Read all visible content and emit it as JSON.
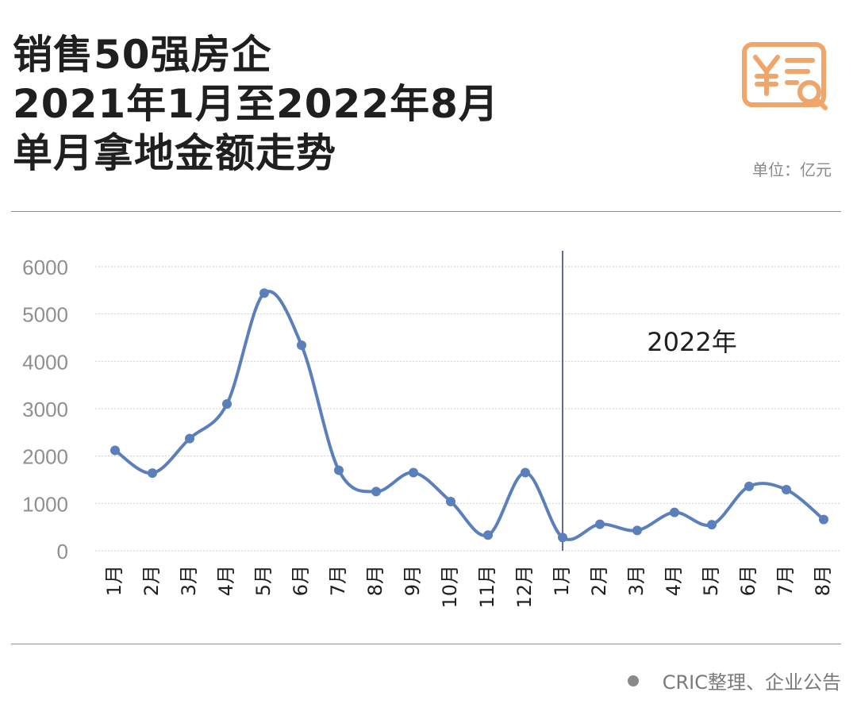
{
  "header": {
    "title_lines": [
      "销售50强房企",
      "2021年1月至2022年8月",
      "单月拿地金额走势"
    ],
    "unit": "单位：亿元",
    "icon": "yuan-receipt-search-icon"
  },
  "footer": {
    "source": "CRIC整理、企业公告"
  },
  "colors": {
    "line": "#5a7fbb",
    "icon": "#f0a56b",
    "grid": "#d0d0d0",
    "divider": "#2e3b6e"
  },
  "chart_data": {
    "type": "line",
    "title": "销售50强房企 2021年1月至2022年8月 单月拿地金额走势",
    "ylabel": "单位：亿元",
    "xlabel": "",
    "ylim": [
      0,
      6000
    ],
    "yticks": [
      "0",
      "1000",
      "2000",
      "3000",
      "4000",
      "5000",
      "6000"
    ],
    "grid": true,
    "categories": [
      "1月",
      "2月",
      "3月",
      "4月",
      "5月",
      "6月",
      "7月",
      "8月",
      "9月",
      "10月",
      "11月",
      "12月",
      "1月",
      "2月",
      "3月",
      "4月",
      "5月",
      "6月",
      "7月",
      "8月"
    ],
    "series": [
      {
        "name": "单月拿地金额",
        "values": [
          2120,
          1640,
          2370,
          3100,
          5440,
          4340,
          1700,
          1250,
          1650,
          1040,
          330,
          1650,
          280,
          560,
          430,
          810,
          550,
          1360,
          1290,
          660
        ]
      }
    ],
    "annotation": {
      "text": "2022年",
      "divider_after_index": 12
    }
  }
}
